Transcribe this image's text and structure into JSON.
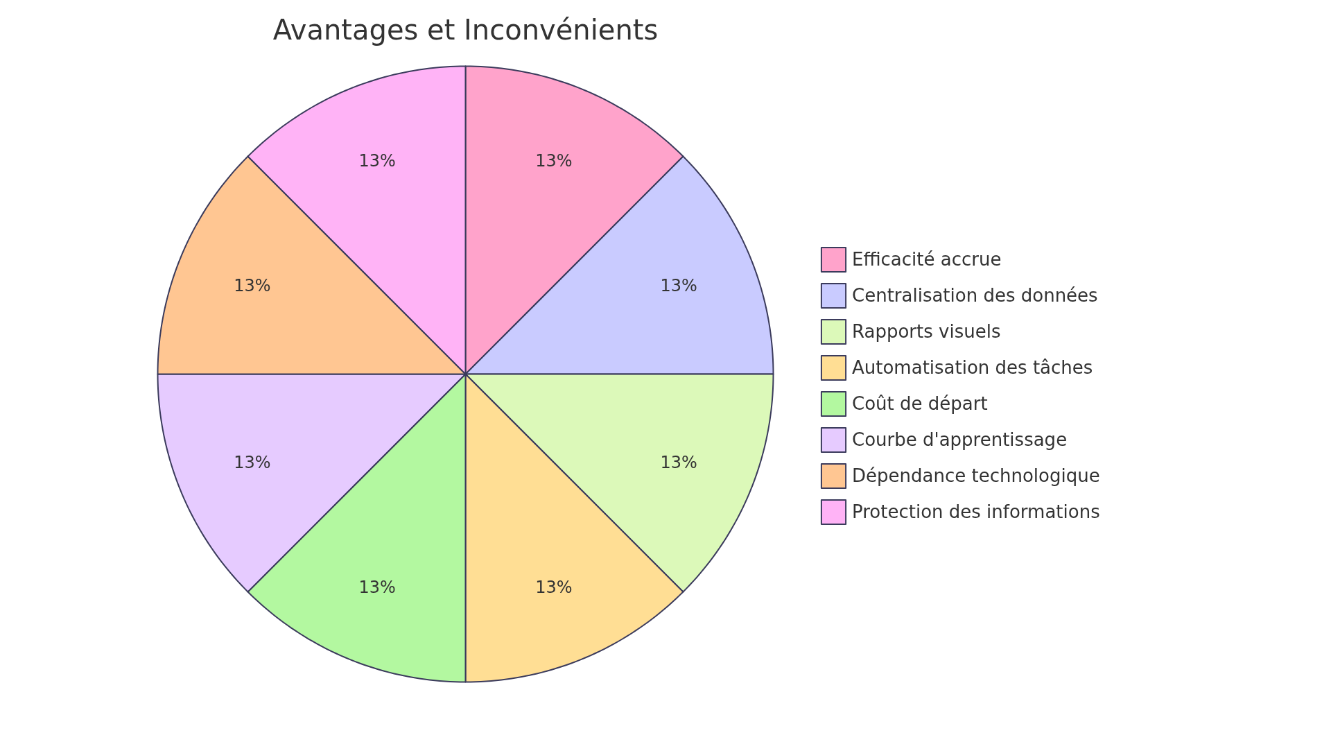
{
  "chart_data": {
    "type": "pie",
    "title": "Avantages et Inconvénients",
    "categories": [
      "Efficacité accrue",
      "Centralisation des données",
      "Rapports visuels",
      "Automatisation des tâches",
      "Coût de départ",
      "Courbe d'apprentissage",
      "Dépendance technologique",
      "Protection des informations"
    ],
    "values": [
      12.5,
      12.5,
      12.5,
      12.5,
      12.5,
      12.5,
      12.5,
      12.5
    ],
    "value_labels": [
      "13%",
      "13%",
      "13%",
      "13%",
      "13%",
      "13%",
      "13%",
      "13%"
    ],
    "colors": [
      "#ffa3cb",
      "#c9cbff",
      "#dcf9b9",
      "#ffde94",
      "#b3f8a0",
      "#e6cbff",
      "#ffc692",
      "#ffb3f6"
    ],
    "legend": "right"
  }
}
